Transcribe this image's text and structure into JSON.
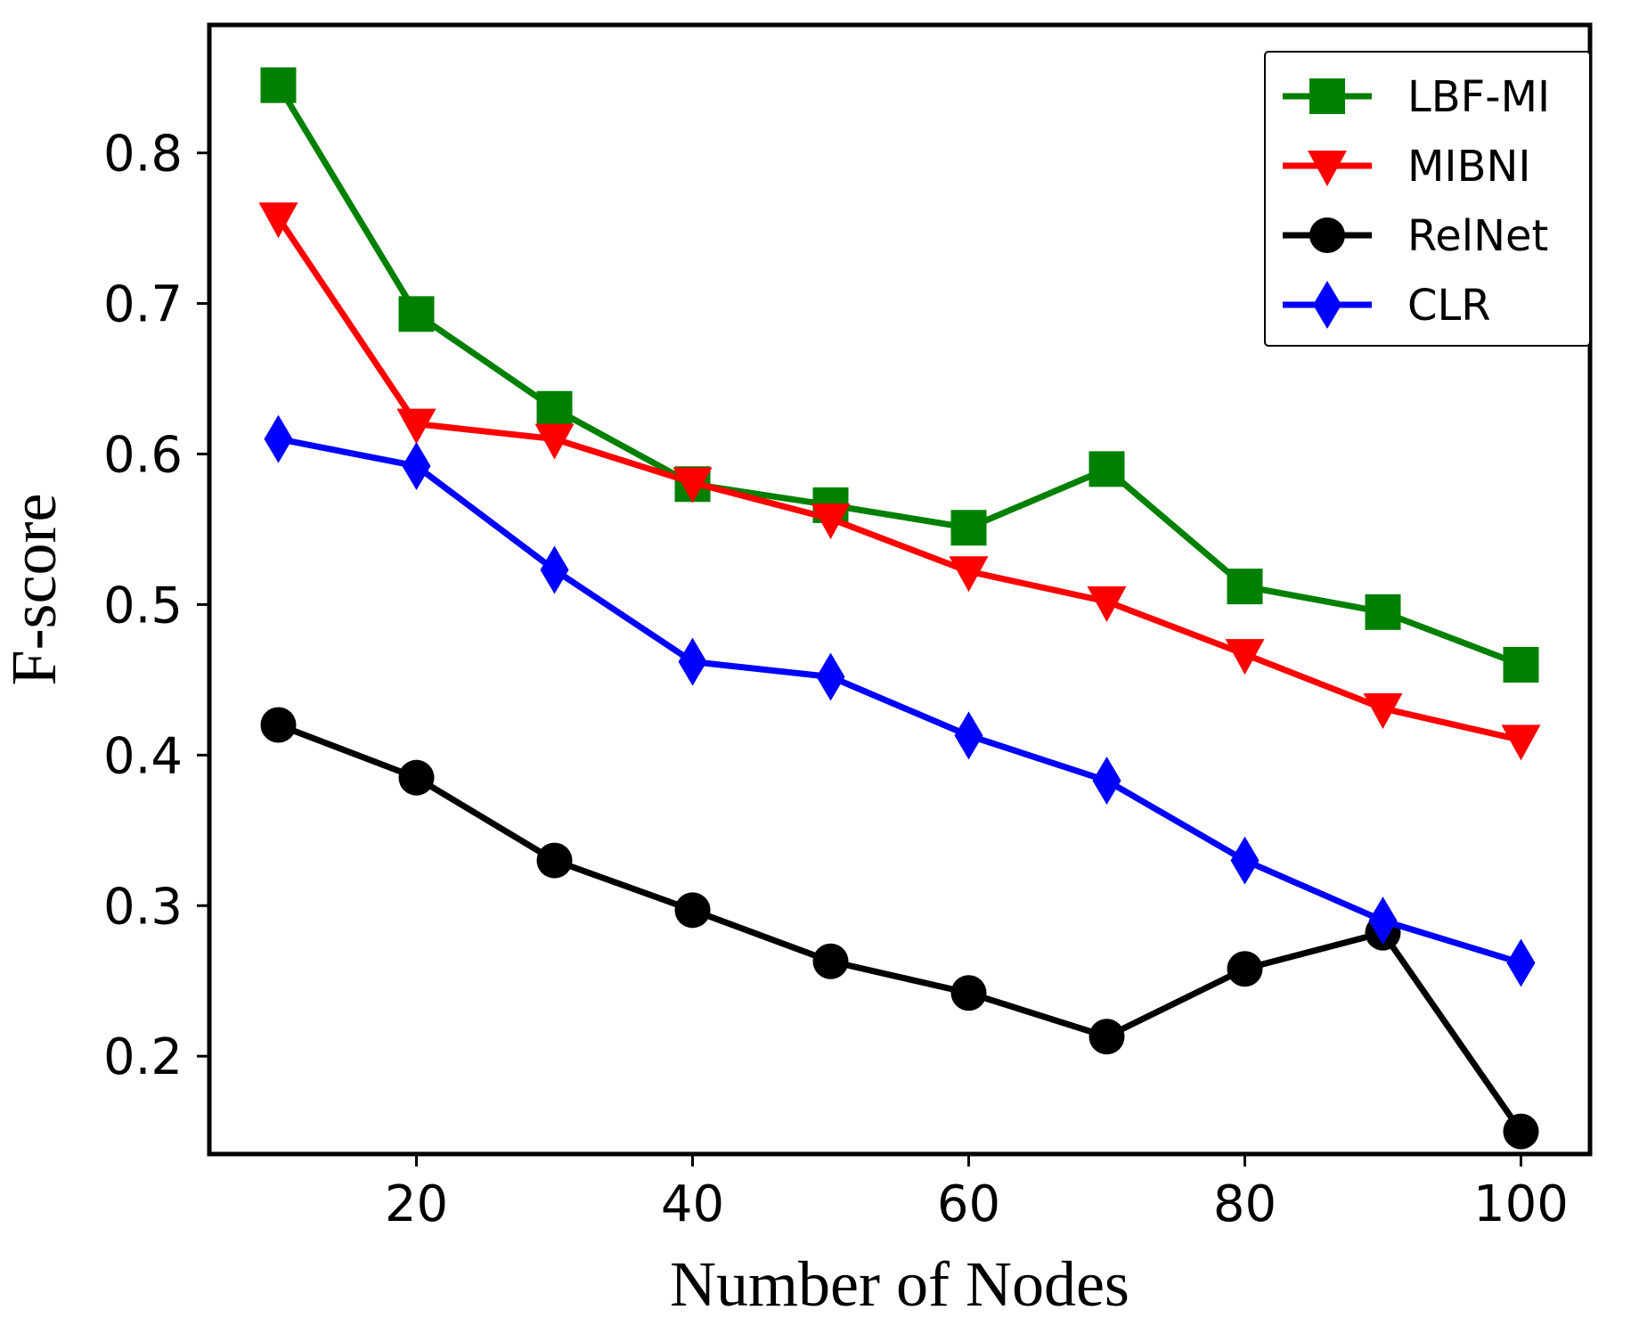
{
  "chart_data": {
    "type": "line",
    "title": "",
    "xlabel": "Number of Nodes",
    "ylabel": "F-score",
    "x": [
      10,
      20,
      30,
      40,
      50,
      60,
      70,
      80,
      90,
      100
    ],
    "xlim": [
      5,
      105
    ],
    "ylim": [
      0.135,
      0.885
    ],
    "xticks": [
      20,
      40,
      60,
      80,
      100
    ],
    "yticks": [
      0.2,
      0.3,
      0.4,
      0.5,
      0.6,
      0.7,
      0.8
    ],
    "xtick_labels": [
      "20",
      "40",
      "60",
      "80",
      "100"
    ],
    "ytick_labels": [
      "0.2",
      "0.3",
      "0.4",
      "0.5",
      "0.6",
      "0.7",
      "0.8"
    ],
    "grid": false,
    "legend_position": "top-right",
    "series": [
      {
        "name": "LBF-MI",
        "color": "#008000",
        "marker": "square",
        "values": [
          0.845,
          0.693,
          0.63,
          0.58,
          0.566,
          0.551,
          0.59,
          0.512,
          0.495,
          0.46
        ]
      },
      {
        "name": "MIBNI",
        "color": "#ff0000",
        "marker": "triangle-down",
        "values": [
          0.757,
          0.62,
          0.61,
          0.581,
          0.557,
          0.522,
          0.502,
          0.467,
          0.431,
          0.41
        ]
      },
      {
        "name": "RelNet",
        "color": "#000000",
        "marker": "circle",
        "values": [
          0.42,
          0.385,
          0.33,
          0.297,
          0.263,
          0.242,
          0.213,
          0.258,
          0.282,
          0.15
        ]
      },
      {
        "name": "CLR",
        "color": "#0000ff",
        "marker": "diamond",
        "values": [
          0.61,
          0.592,
          0.523,
          0.462,
          0.452,
          0.413,
          0.383,
          0.33,
          0.29,
          0.262
        ]
      }
    ]
  }
}
